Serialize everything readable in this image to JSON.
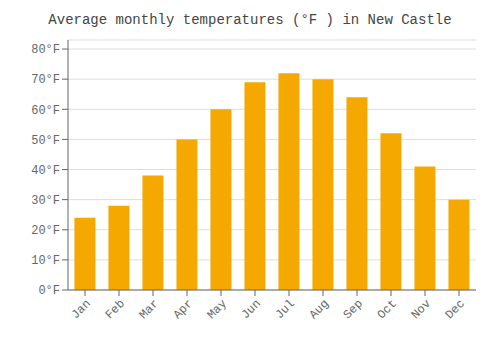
{
  "chart_data": {
    "type": "bar",
    "title": "Average monthly temperatures (°F ) in New Castle",
    "categories": [
      "Jan",
      "Feb",
      "Mar",
      "Apr",
      "May",
      "Jun",
      "Jul",
      "Aug",
      "Sep",
      "Oct",
      "Nov",
      "Dec"
    ],
    "values": [
      24,
      28,
      38,
      50,
      60,
      69,
      72,
      70,
      64,
      52,
      41,
      30
    ],
    "color": "#F5A800",
    "ylim": [
      0,
      83
    ],
    "yticks": [
      {
        "value": 0,
        "label": "0°F"
      },
      {
        "value": 10,
        "label": "10°F"
      },
      {
        "value": 20,
        "label": "20°F"
      },
      {
        "value": 30,
        "label": "30°F"
      },
      {
        "value": 40,
        "label": "40°F"
      },
      {
        "value": 50,
        "label": "50°F"
      },
      {
        "value": 60,
        "label": "60°F"
      },
      {
        "value": 70,
        "label": "70°F"
      },
      {
        "value": 80,
        "label": "80°F"
      }
    ],
    "grid": true
  }
}
